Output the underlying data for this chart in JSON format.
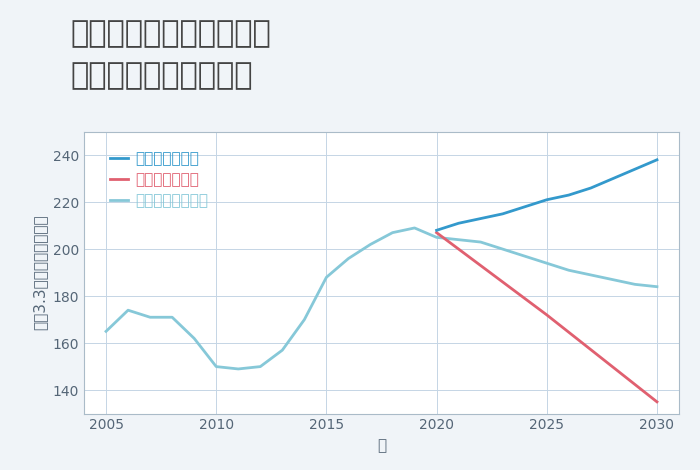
{
  "title_line1": "東京都港区麻布永坂町の",
  "title_line2": "中古戸建ての価格推移",
  "xlabel": "年",
  "ylabel": "坪（3.3㎡）単価（万円）",
  "background_color": "#f0f4f8",
  "plot_background": "#ffffff",
  "grid_color": "#c5d5e5",
  "normal_scenario": {
    "label": "ノーマルシナリオ",
    "color": "#86c8d8",
    "years": [
      2005,
      2006,
      2007,
      2008,
      2009,
      2010,
      2011,
      2012,
      2013,
      2014,
      2015,
      2016,
      2017,
      2018,
      2019,
      2020,
      2021,
      2022,
      2023,
      2024,
      2025,
      2026,
      2027,
      2028,
      2029,
      2030
    ],
    "values": [
      165,
      174,
      171,
      171,
      162,
      150,
      149,
      150,
      157,
      170,
      188,
      196,
      202,
      207,
      209,
      205,
      204,
      203,
      200,
      197,
      194,
      191,
      189,
      187,
      185,
      184
    ]
  },
  "good_scenario": {
    "label": "グッドシナリオ",
    "color": "#3399cc",
    "years": [
      2020,
      2021,
      2022,
      2023,
      2024,
      2025,
      2026,
      2027,
      2028,
      2029,
      2030
    ],
    "values": [
      208,
      211,
      213,
      215,
      218,
      221,
      223,
      226,
      230,
      234,
      238
    ]
  },
  "bad_scenario": {
    "label": "バッドシナリオ",
    "color": "#e06070",
    "years": [
      2020,
      2025,
      2030
    ],
    "values": [
      207,
      172,
      135
    ]
  },
  "xlim": [
    2004,
    2031
  ],
  "ylim": [
    130,
    250
  ],
  "xticks": [
    2005,
    2010,
    2015,
    2020,
    2025,
    2030
  ],
  "yticks": [
    140,
    160,
    180,
    200,
    220,
    240
  ],
  "title_fontsize": 22,
  "label_fontsize": 11,
  "legend_fontsize": 11,
  "tick_fontsize": 10,
  "legend_text_color": "#5588aa"
}
